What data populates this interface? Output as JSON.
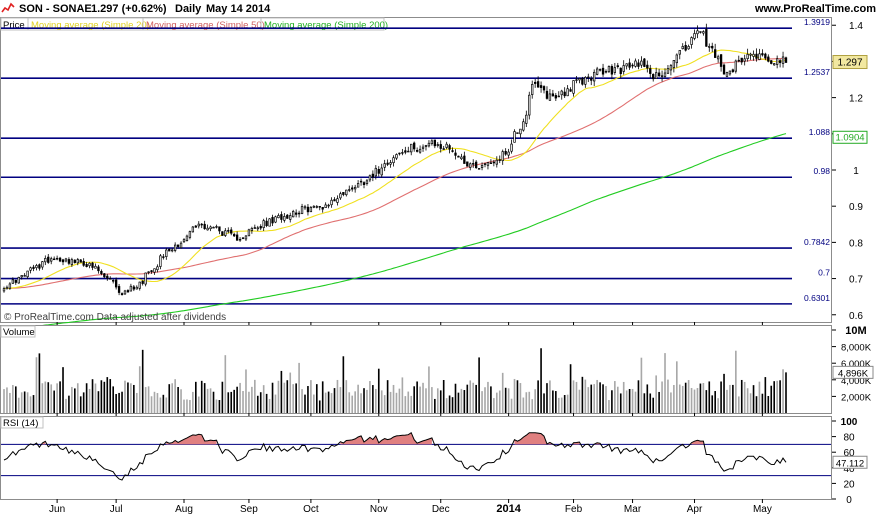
{
  "header": {
    "symbol": "SON - SONAE",
    "quote": "1.297 (+0.62%)",
    "period": "Daily",
    "date": "May 14 2014",
    "site": "www.ProRealTime.com"
  },
  "legend": {
    "price": "Price",
    "ma20": "Moving average (Simple 20)",
    "ma50": "Moving average (Simple 50)",
    "ma200": "Moving average (Simple 200)"
  },
  "watermark": "© ProRealTime.com  Data adjusted after dividends",
  "volume_panel": {
    "label": "Volume"
  },
  "rsi_panel": {
    "label": "RSI (14)",
    "value_label": "47.112"
  },
  "colors": {
    "ma20": "#f0e020",
    "ma50": "#e07070",
    "ma200": "#22cc22",
    "level_line": "#000080",
    "candle": "#000000",
    "price_tag": "#f2e8a0",
    "ma200_tag": "#22aa22",
    "rsi_fill": "#e08080",
    "volume_gray": "#a8a8a8"
  },
  "chart_data": [
    {
      "type": "candlestick",
      "panel": "price",
      "grid": false,
      "ylim": [
        0.58,
        1.42
      ],
      "y_ticks": [
        "0.6",
        "0.7",
        "0.8",
        "0.9",
        "1",
        "1.1",
        "1.2",
        "1.3",
        "1.4"
      ],
      "x_ticks": [
        "Jun",
        "Jul",
        "Aug",
        "Sep",
        "Oct",
        "Nov",
        "Dec",
        "2014",
        "Feb",
        "Mar",
        "Apr",
        "May"
      ],
      "last_price_label": "1.297",
      "ma200_last_label": "1.0904",
      "horizontal_levels": [
        1.3919,
        1.2537,
        1.088,
        0.98,
        0.7842,
        0.7,
        0.6301
      ],
      "horizontal_level_labels": [
        "1.3919",
        "1.2537",
        "1.088",
        "0.98",
        "0.7842",
        "0.7",
        "0.6301"
      ],
      "close_anchors": [
        [
          "2013-05-10",
          0.68
        ],
        [
          "2013-05-20",
          0.72
        ],
        [
          "2013-05-31",
          0.76
        ],
        [
          "2013-06-07",
          0.75
        ],
        [
          "2013-06-17",
          0.74
        ],
        [
          "2013-06-26",
          0.7
        ],
        [
          "2013-07-03",
          0.66
        ],
        [
          "2013-07-10",
          0.68
        ],
        [
          "2013-07-19",
          0.74
        ],
        [
          "2013-07-25",
          0.78
        ],
        [
          "2013-07-31",
          0.8
        ],
        [
          "2013-08-08",
          0.85
        ],
        [
          "2013-08-16",
          0.84
        ],
        [
          "2013-08-26",
          0.81
        ],
        [
          "2013-09-05",
          0.84
        ],
        [
          "2013-09-16",
          0.87
        ],
        [
          "2013-09-26",
          0.89
        ],
        [
          "2013-10-07",
          0.9
        ],
        [
          "2013-10-17",
          0.94
        ],
        [
          "2013-10-28",
          0.98
        ],
        [
          "2013-11-07",
          1.03
        ],
        [
          "2013-11-18",
          1.06
        ],
        [
          "2013-11-27",
          1.07
        ],
        [
          "2013-12-06",
          1.06
        ],
        [
          "2013-12-13",
          1.02
        ],
        [
          "2013-12-20",
          1.01
        ],
        [
          "2013-12-31",
          1.04
        ],
        [
          "2014-01-08",
          1.12
        ],
        [
          "2014-01-14",
          1.23
        ],
        [
          "2014-01-24",
          1.2
        ],
        [
          "2014-02-04",
          1.24
        ],
        [
          "2014-02-14",
          1.27
        ],
        [
          "2014-02-26",
          1.28
        ],
        [
          "2014-03-07",
          1.3
        ],
        [
          "2014-03-14",
          1.25
        ],
        [
          "2014-03-21",
          1.3
        ],
        [
          "2014-03-31",
          1.37
        ],
        [
          "2014-04-04",
          1.38
        ],
        [
          "2014-04-11",
          1.3
        ],
        [
          "2014-04-17",
          1.26
        ],
        [
          "2014-04-25",
          1.33
        ],
        [
          "2014-05-05",
          1.31
        ],
        [
          "2014-05-14",
          1.297
        ]
      ]
    },
    {
      "type": "bar",
      "panel": "volume",
      "unit": "shares",
      "ylim": [
        0,
        10000000
      ],
      "y_ticks": [
        "2,000K",
        "4,000K",
        "6,000K",
        "8,000K",
        "10M"
      ],
      "last_value_label": "4,896K",
      "last_value": 4896000
    },
    {
      "type": "line",
      "panel": "rsi",
      "ylim": [
        0,
        100
      ],
      "y_ticks": [
        "0",
        "20",
        "40",
        "60",
        "80",
        "100"
      ],
      "reference_levels": [
        30,
        70
      ],
      "last_value": 47.112
    }
  ]
}
